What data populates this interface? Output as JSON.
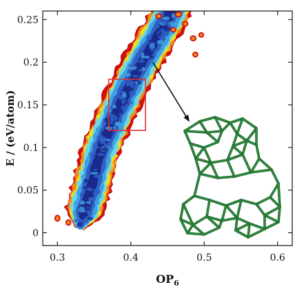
{
  "chart_data": {
    "type": "heatmap",
    "title": "",
    "xlabel": "OP",
    "xlabel_sub": "6",
    "ylabel": "E / (eV/atom)",
    "xlim": [
      0.28,
      0.62
    ],
    "ylim": [
      -0.015,
      0.26
    ],
    "x_ticks": [
      0.3,
      0.4,
      0.5,
      0.6
    ],
    "x_tick_labels": [
      "0.3",
      "0.4",
      "0.5",
      "0.6"
    ],
    "y_ticks": [
      0,
      0.05,
      0.1,
      0.15,
      0.2,
      0.25
    ],
    "y_tick_labels": [
      "0",
      "0.05",
      "0.1",
      "0.15",
      "0.2",
      "0.25"
    ],
    "density_ridge": [
      {
        "op6": 0.33,
        "e": 0.005
      },
      {
        "op6": 0.345,
        "e": 0.05
      },
      {
        "op6": 0.36,
        "e": 0.1
      },
      {
        "op6": 0.385,
        "e": 0.15
      },
      {
        "op6": 0.415,
        "e": 0.2
      },
      {
        "op6": 0.45,
        "e": 0.25
      }
    ],
    "colormap": [
      "#1a2a8c",
      "#2f5fc4",
      "#3fa0e0",
      "#6fd6e8",
      "#e8e020",
      "#f08a1a",
      "#d01010"
    ],
    "highlight_box": {
      "op6": [
        0.37,
        0.42
      ],
      "e": [
        0.12,
        0.18
      ],
      "color": "#e03030"
    },
    "arrow": {
      "from": {
        "op6": 0.43,
        "e": 0.2
      },
      "to": {
        "op6": 0.48,
        "e": 0.13
      }
    },
    "inset": "green cluster structure",
    "inset_color": "#2e8b3e"
  }
}
